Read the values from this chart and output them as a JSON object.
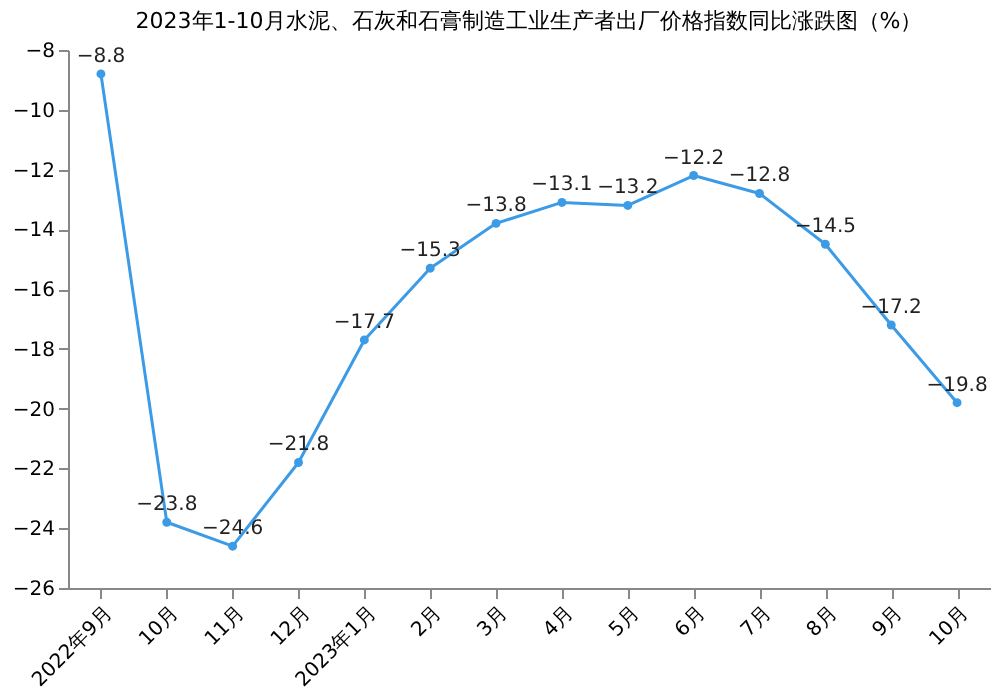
{
  "chart_data": {
    "type": "line",
    "title": "2023年1-10月水泥、石灰和石膏制造工业生产者出厂价格指数同比涨跌图（%）",
    "categories": [
      "2022年9月",
      "10月",
      "11月",
      "12月",
      "2023年1月",
      "2月",
      "3月",
      "4月",
      "5月",
      "6月",
      "7月",
      "8月",
      "9月",
      "10月"
    ],
    "series": [
      {
        "color": "#3c9be6",
        "values": [
          -8.8,
          -23.8,
          -24.6,
          -21.8,
          -17.7,
          -15.3,
          -13.8,
          -13.1,
          -13.2,
          -12.2,
          -12.8,
          -14.5,
          -17.2,
          -19.8
        ]
      }
    ],
    "ylim": [
      -26,
      -8
    ],
    "yticks": [
      -26,
      -24,
      -22,
      -20,
      -18,
      -16,
      -14,
      -12,
      -10,
      -8
    ],
    "grid": false,
    "marker": "circle",
    "data_labels": true
  }
}
